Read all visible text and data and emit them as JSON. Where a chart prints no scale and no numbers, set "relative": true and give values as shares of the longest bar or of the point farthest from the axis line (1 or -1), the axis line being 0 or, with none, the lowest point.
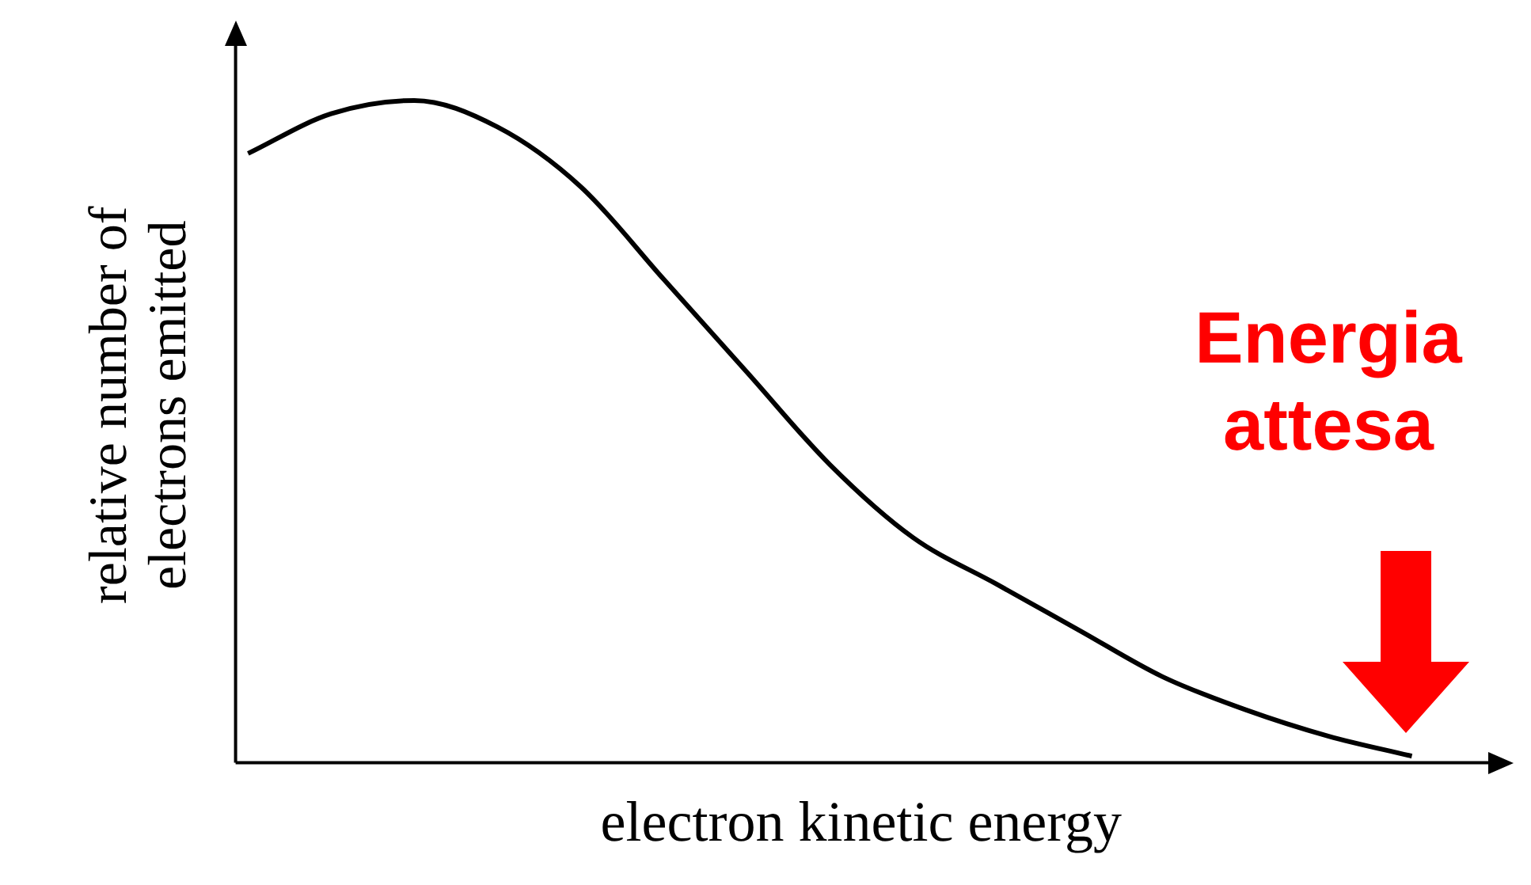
{
  "chart_data": {
    "type": "line",
    "relative": true,
    "xlabel": "electron kinetic energy",
    "ylabel": "relative number of electrons emitted",
    "categories": [
      null,
      null,
      null,
      null,
      null,
      null,
      null,
      null,
      null,
      null,
      null,
      null,
      null,
      null,
      null
    ],
    "series": [
      {
        "color": "#000000",
        "values": [
          0.92,
          0.98,
          1,
          0.96,
          0.87,
          0.73,
          0.59,
          0.45,
          0.34,
          0.27,
          0.2,
          0.13,
          0.08,
          0.04,
          0.01
        ]
      }
    ],
    "legend": false,
    "annotations": [
      {
        "text": "Energia attesa"
      }
    ]
  }
}
